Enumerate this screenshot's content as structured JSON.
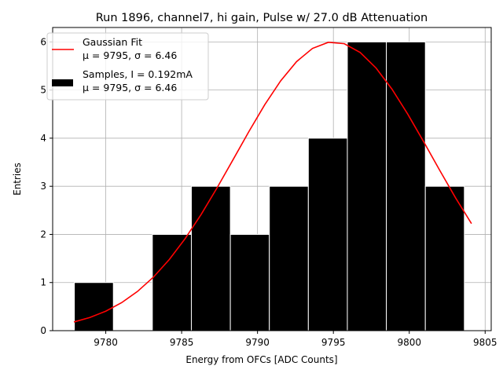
{
  "chart_data": {
    "type": "bar",
    "title": "Run 1896, channel7, hi gain, Pulse w/ 27.0 dB Attenuation",
    "xlabel": "Energy from OFCs [ADC Counts]",
    "ylabel": "Entries",
    "xlim": [
      9776.5,
      9805.4
    ],
    "ylim": [
      0,
      6.3
    ],
    "xticks": [
      9780,
      9785,
      9790,
      9795,
      9800,
      9805
    ],
    "yticks": [
      0,
      1,
      2,
      3,
      4,
      5,
      6
    ],
    "grid": true,
    "legend_position": "top-left",
    "histogram": {
      "bin_edges": [
        9777.93,
        9780.5,
        9783.07,
        9785.64,
        9788.21,
        9790.78,
        9793.35,
        9795.92,
        9798.49,
        9801.06,
        9803.63,
        9806.2
      ],
      "counts": [
        1,
        0,
        2,
        3,
        2,
        3,
        4,
        6,
        6,
        3,
        0
      ],
      "color": "#000000"
    },
    "fit": {
      "type": "gaussian",
      "mu": 9795,
      "sigma": 6.46,
      "amplitude": 6.0,
      "x_range": [
        9777.9,
        9804.1
      ],
      "color": "#ff0000"
    },
    "legend": [
      {
        "kind": "line",
        "line1": "Gaussian Fit",
        "line2": "μ = 9795, σ = 6.46",
        "color": "#ff0000"
      },
      {
        "kind": "patch",
        "line1": "Samples, I = 0.192mA",
        "line2": "μ = 9795, σ = 6.46",
        "color": "#000000"
      }
    ]
  }
}
